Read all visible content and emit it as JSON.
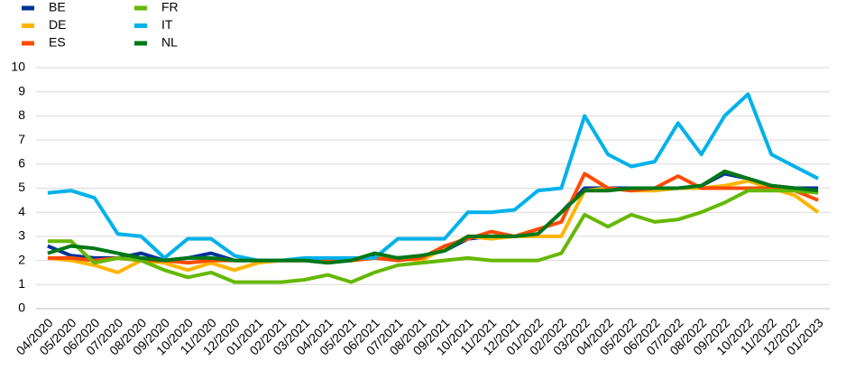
{
  "chart_data": {
    "type": "line",
    "categories": [
      "04/2020",
      "05/2020",
      "06/2020",
      "07/2020",
      "08/2020",
      "09/2020",
      "10/2020",
      "11/2020",
      "12/2020",
      "01/2021",
      "02/2021",
      "03/2021",
      "04/2021",
      "05/2021",
      "06/2021",
      "07/2021",
      "08/2021",
      "09/2021",
      "10/2021",
      "11/2021",
      "12/2021",
      "01/2022",
      "02/2022",
      "03/2022",
      "04/2022",
      "05/2022",
      "06/2022",
      "07/2022",
      "08/2022",
      "09/2022",
      "10/2022",
      "11/2022",
      "12/2022",
      "01/2023"
    ],
    "series": [
      {
        "name": "BE",
        "color": "#003299",
        "values": [
          2.6,
          2.2,
          2.1,
          2.1,
          2.3,
          2.0,
          2.1,
          2.3,
          2.0,
          2.0,
          2.0,
          2.0,
          2.0,
          2.0,
          2.2,
          2.1,
          2.2,
          2.4,
          2.9,
          3.0,
          3.0,
          3.1,
          4.0,
          5.0,
          5.0,
          5.0,
          5.0,
          5.0,
          5.1,
          5.6,
          5.4,
          5.1,
          5.0,
          5.0
        ]
      },
      {
        "name": "DE",
        "color": "#FFB400",
        "values": [
          2.1,
          2.0,
          1.8,
          1.5,
          2.0,
          1.9,
          1.6,
          1.9,
          1.6,
          1.9,
          2.0,
          2.0,
          2.0,
          2.0,
          2.1,
          2.1,
          2.0,
          2.5,
          3.0,
          2.9,
          3.0,
          3.0,
          3.0,
          4.9,
          5.0,
          4.9,
          4.9,
          5.0,
          5.0,
          5.1,
          5.3,
          5.0,
          4.7,
          4.0
        ]
      },
      {
        "name": "ES",
        "color": "#FF4B00",
        "values": [
          2.1,
          2.1,
          2.0,
          2.1,
          2.0,
          2.0,
          1.9,
          2.0,
          2.0,
          2.0,
          2.0,
          2.0,
          2.0,
          2.0,
          2.1,
          2.0,
          2.1,
          2.6,
          2.9,
          3.2,
          3.0,
          3.3,
          3.6,
          5.6,
          5.0,
          4.9,
          5.0,
          5.5,
          5.0,
          5.0,
          5.0,
          5.0,
          4.9,
          4.5
        ]
      },
      {
        "name": "FR",
        "color": "#65B800",
        "values": [
          2.8,
          2.8,
          1.9,
          2.1,
          2.0,
          1.6,
          1.3,
          1.5,
          1.1,
          1.1,
          1.1,
          1.2,
          1.4,
          1.1,
          1.5,
          1.8,
          1.9,
          2.0,
          2.1,
          2.0,
          2.0,
          2.0,
          2.3,
          3.9,
          3.4,
          3.9,
          3.6,
          3.7,
          4.0,
          4.4,
          4.9,
          4.9,
          4.9,
          4.8
        ]
      },
      {
        "name": "IT",
        "color": "#00B1EA",
        "values": [
          4.8,
          4.9,
          4.6,
          3.1,
          3.0,
          2.1,
          2.9,
          2.9,
          2.2,
          2.0,
          2.0,
          2.1,
          2.1,
          2.1,
          2.1,
          2.9,
          2.9,
          2.9,
          4.0,
          4.0,
          4.1,
          4.9,
          5.0,
          8.0,
          6.4,
          5.9,
          6.1,
          7.7,
          6.4,
          8.0,
          8.9,
          6.4,
          5.9,
          5.4
        ]
      },
      {
        "name": "NL",
        "color": "#007816",
        "values": [
          2.3,
          2.6,
          2.5,
          2.3,
          2.1,
          2.0,
          2.1,
          2.1,
          2.0,
          2.0,
          2.0,
          2.0,
          1.9,
          2.0,
          2.3,
          2.1,
          2.2,
          2.4,
          3.0,
          3.0,
          3.0,
          3.1,
          4.0,
          4.9,
          4.9,
          5.0,
          5.0,
          5.0,
          5.1,
          5.7,
          5.4,
          5.1,
          5.0,
          4.9
        ]
      }
    ],
    "ylim": [
      0,
      10
    ],
    "yticks": [
      0,
      1,
      2,
      3,
      4,
      5,
      6,
      7,
      8,
      9,
      10
    ],
    "grid": true
  }
}
